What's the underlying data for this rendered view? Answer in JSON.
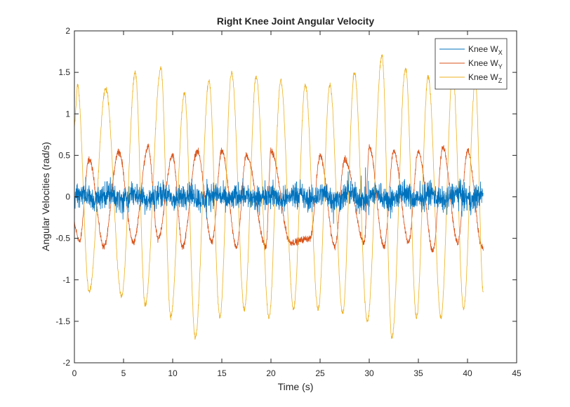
{
  "chart_data": {
    "type": "line",
    "title": "Right Knee Joint Angular Velocity",
    "xlabel": "Time (s)",
    "ylabel": "Angular Velocities (rad/s)",
    "xlim": [
      0,
      45
    ],
    "ylim": [
      -2,
      2
    ],
    "xticks": [
      0,
      5,
      10,
      15,
      20,
      25,
      30,
      35,
      40,
      45
    ],
    "yticks": [
      -2,
      -1.5,
      -1,
      -0.5,
      0,
      0.5,
      1,
      1.5,
      2
    ],
    "grid": false,
    "legend_position": "top-right",
    "series": [
      {
        "name": "Knee W",
        "subscript": "X",
        "color": "#0072BD",
        "shape": "high-frequency noise centered near 0",
        "approx_range": [
          -0.7,
          0.6
        ],
        "x_range": [
          0,
          41.6
        ]
      },
      {
        "name": "Knee W",
        "subscript": "Y",
        "color": "#D95319",
        "shape": "periodic oscillation",
        "peaks": [
          {
            "x": 1.5,
            "y": 0.45
          },
          {
            "x": 4.5,
            "y": 0.55
          },
          {
            "x": 7.5,
            "y": 0.6
          },
          {
            "x": 10.0,
            "y": 0.5
          },
          {
            "x": 12.5,
            "y": 0.55
          },
          {
            "x": 15.0,
            "y": 0.55
          },
          {
            "x": 17.5,
            "y": 0.5
          },
          {
            "x": 20.0,
            "y": 0.55
          },
          {
            "x": 25.0,
            "y": 0.5
          },
          {
            "x": 27.5,
            "y": 0.45
          },
          {
            "x": 30.0,
            "y": 0.6
          },
          {
            "x": 32.5,
            "y": 0.55
          },
          {
            "x": 35.0,
            "y": 0.55
          },
          {
            "x": 37.5,
            "y": 0.6
          },
          {
            "x": 40.0,
            "y": 0.55
          }
        ],
        "troughs": [
          {
            "x": 0.5,
            "y": -0.55
          },
          {
            "x": 3.0,
            "y": -0.6
          },
          {
            "x": 6.0,
            "y": -0.55
          },
          {
            "x": 8.5,
            "y": -0.5
          },
          {
            "x": 11.0,
            "y": -0.6
          },
          {
            "x": 14.0,
            "y": -0.55
          },
          {
            "x": 16.5,
            "y": -0.6
          },
          {
            "x": 19.5,
            "y": -0.6
          },
          {
            "x": 22.0,
            "y": -0.55
          },
          {
            "x": 24.0,
            "y": -0.5
          },
          {
            "x": 26.5,
            "y": -0.6
          },
          {
            "x": 29.5,
            "y": -0.55
          },
          {
            "x": 31.5,
            "y": -0.6
          },
          {
            "x": 34.0,
            "y": -0.55
          },
          {
            "x": 36.5,
            "y": -0.65
          },
          {
            "x": 39.0,
            "y": -0.55
          },
          {
            "x": 41.5,
            "y": -0.6
          }
        ],
        "x_range": [
          0,
          41.6
        ]
      },
      {
        "name": "Knee W",
        "subscript": "Z",
        "color": "#EDB120",
        "shape": "periodic oscillation",
        "peaks": [
          {
            "x": 0.3,
            "y": 1.35
          },
          {
            "x": 3.2,
            "y": 1.3
          },
          {
            "x": 6.2,
            "y": 1.5
          },
          {
            "x": 8.8,
            "y": 1.55
          },
          {
            "x": 11.2,
            "y": 1.25
          },
          {
            "x": 13.7,
            "y": 1.4
          },
          {
            "x": 16.0,
            "y": 1.5
          },
          {
            "x": 18.5,
            "y": 1.45
          },
          {
            "x": 21.0,
            "y": 1.4
          },
          {
            "x": 23.5,
            "y": 1.35
          },
          {
            "x": 26.0,
            "y": 1.35
          },
          {
            "x": 28.5,
            "y": 1.5
          },
          {
            "x": 31.3,
            "y": 1.7
          },
          {
            "x": 33.7,
            "y": 1.55
          },
          {
            "x": 36.0,
            "y": 1.45
          },
          {
            "x": 38.5,
            "y": 1.5
          },
          {
            "x": 40.8,
            "y": 1.4
          }
        ],
        "troughs": [
          {
            "x": 1.5,
            "y": -1.15
          },
          {
            "x": 4.8,
            "y": -1.2
          },
          {
            "x": 7.2,
            "y": -1.3
          },
          {
            "x": 9.8,
            "y": -1.45
          },
          {
            "x": 12.3,
            "y": -1.7
          },
          {
            "x": 14.8,
            "y": -1.45
          },
          {
            "x": 17.3,
            "y": -1.35
          },
          {
            "x": 19.8,
            "y": -1.45
          },
          {
            "x": 22.3,
            "y": -1.35
          },
          {
            "x": 24.8,
            "y": -1.35
          },
          {
            "x": 27.3,
            "y": -1.4
          },
          {
            "x": 29.8,
            "y": -1.5
          },
          {
            "x": 32.3,
            "y": -1.7
          },
          {
            "x": 34.8,
            "y": -1.45
          },
          {
            "x": 37.3,
            "y": -1.45
          },
          {
            "x": 39.6,
            "y": -1.35
          },
          {
            "x": 41.6,
            "y": -1.15
          }
        ],
        "x_range": [
          0,
          41.6
        ]
      }
    ]
  }
}
